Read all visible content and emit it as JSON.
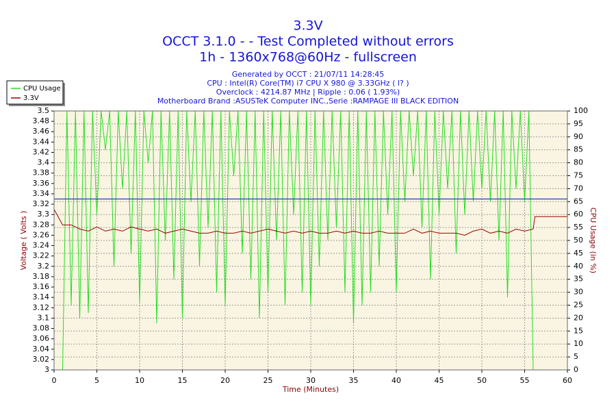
{
  "chart_data": {
    "type": "line",
    "title": "3.3V",
    "title_lines": [
      "OCCT 3.1.0 -  - Test Completed without errors",
      "1h - 1360x768@60Hz - fullscreen"
    ],
    "subtitle_lines": [
      "Generated by OCCT : 21/07/11 14:28:45",
      "CPU : Intel(R) Core(TM) i7 CPU X 980 @ 3.33GHz (   l? )",
      "Overclock : 4214.87 MHz | Ripple : 0.06 ( 1.93%)",
      "Motherboard Brand :ASUSTeK Computer INC.,Serie :RAMPAGE III BLACK EDITION"
    ],
    "x_label": "Time (Minutes)",
    "y_label": "Voltage ( Volts )",
    "y2_label": "CPU Usage (in %)",
    "xlim": [
      0,
      60
    ],
    "xticks": [
      0,
      5,
      10,
      15,
      20,
      25,
      30,
      35,
      40,
      45,
      50,
      55,
      60
    ],
    "ylim": [
      3,
      3.5
    ],
    "yticks": [
      3,
      3.02,
      3.04,
      3.06,
      3.08,
      3.1,
      3.12,
      3.14,
      3.16,
      3.18,
      3.2,
      3.22,
      3.24,
      3.26,
      3.28,
      3.3,
      3.32,
      3.34,
      3.36,
      3.38,
      3.4,
      3.42,
      3.44,
      3.46,
      3.48,
      3.5
    ],
    "y2lim": [
      0,
      100
    ],
    "y2ticks": [
      0,
      5,
      10,
      15,
      20,
      25,
      30,
      35,
      40,
      45,
      50,
      55,
      60,
      65,
      70,
      75,
      80,
      85,
      90,
      95,
      100
    ],
    "grid": true,
    "legend": "top-left",
    "reference_line": {
      "value": 3.33,
      "color": "#2040b0"
    },
    "series": [
      {
        "name": "CPU Usage",
        "color": "#22dd22",
        "axis": "y2",
        "x": [
          0,
          0.5,
          1,
          1.5,
          2,
          2.5,
          3,
          3.5,
          4,
          4.5,
          5,
          5.5,
          6,
          6.5,
          7,
          7.5,
          8,
          8.5,
          9,
          9.5,
          10,
          10.5,
          11,
          11.5,
          12,
          12.5,
          13,
          13.5,
          14,
          14.5,
          15,
          15.5,
          16,
          16.5,
          17,
          17.5,
          18,
          18.5,
          19,
          19.5,
          20,
          20.5,
          21,
          21.5,
          22,
          22.5,
          23,
          23.5,
          24,
          24.5,
          25,
          25.5,
          26,
          26.5,
          27,
          27.5,
          28,
          28.5,
          29,
          29.5,
          30,
          30.5,
          31,
          31.5,
          32,
          32.5,
          33,
          33.5,
          34,
          34.5,
          35,
          35.5,
          36,
          36.5,
          37,
          37.5,
          38,
          38.5,
          39,
          39.5,
          40,
          40.5,
          41,
          41.5,
          42,
          42.5,
          43,
          43.5,
          44,
          44.5,
          45,
          45.5,
          46,
          46.5,
          47,
          47.5,
          48,
          48.5,
          49,
          49.5,
          50,
          50.5,
          51,
          51.5,
          52,
          52.5,
          53,
          53.5,
          54,
          54.5,
          55,
          55.5,
          56,
          56.5,
          57,
          57.5,
          58,
          58.5,
          59,
          59.5,
          60
        ],
        "values": [
          0,
          0,
          0,
          100,
          25,
          100,
          20,
          100,
          22,
          100,
          60,
          100,
          85,
          100,
          40,
          100,
          70,
          100,
          45,
          100,
          26,
          100,
          80,
          100,
          18,
          100,
          50,
          100,
          35,
          100,
          20,
          100,
          65,
          100,
          40,
          100,
          55,
          100,
          30,
          100,
          25,
          100,
          75,
          100,
          45,
          100,
          35,
          100,
          20,
          100,
          30,
          100,
          50,
          100,
          25,
          100,
          60,
          100,
          30,
          100,
          25,
          100,
          40,
          100,
          50,
          100,
          55,
          100,
          30,
          100,
          18,
          100,
          25,
          100,
          30,
          100,
          40,
          100,
          60,
          100,
          30,
          100,
          65,
          100,
          75,
          100,
          55,
          100,
          35,
          100,
          60,
          100,
          70,
          100,
          45,
          100,
          60,
          100,
          65,
          100,
          70,
          100,
          65,
          100,
          50,
          100,
          28,
          100,
          70,
          100,
          65,
          100,
          0,
          0,
          0,
          0,
          0,
          0,
          0,
          0,
          0
        ]
      },
      {
        "name": "3.3V",
        "color": "#990000",
        "x": [
          0,
          1,
          2,
          3,
          4,
          5,
          6,
          7,
          8,
          9,
          10,
          11,
          12,
          13,
          14,
          15,
          16,
          17,
          18,
          19,
          20,
          21,
          22,
          23,
          24,
          25,
          26,
          27,
          28,
          29,
          30,
          31,
          32,
          33,
          34,
          35,
          36,
          37,
          38,
          39,
          40,
          41,
          42,
          43,
          44,
          45,
          46,
          47,
          48,
          49,
          50,
          51,
          52,
          53,
          54,
          55,
          56,
          56.2,
          60
        ],
        "values": [
          3.31,
          3.28,
          3.28,
          3.272,
          3.268,
          3.276,
          3.268,
          3.272,
          3.268,
          3.276,
          3.272,
          3.268,
          3.272,
          3.264,
          3.268,
          3.272,
          3.268,
          3.264,
          3.264,
          3.268,
          3.264,
          3.264,
          3.268,
          3.264,
          3.268,
          3.272,
          3.268,
          3.264,
          3.268,
          3.264,
          3.268,
          3.264,
          3.264,
          3.268,
          3.264,
          3.268,
          3.264,
          3.264,
          3.268,
          3.264,
          3.264,
          3.264,
          3.272,
          3.264,
          3.268,
          3.264,
          3.264,
          3.264,
          3.26,
          3.268,
          3.272,
          3.264,
          3.268,
          3.264,
          3.272,
          3.268,
          3.272,
          3.296,
          3.296
        ]
      }
    ]
  }
}
